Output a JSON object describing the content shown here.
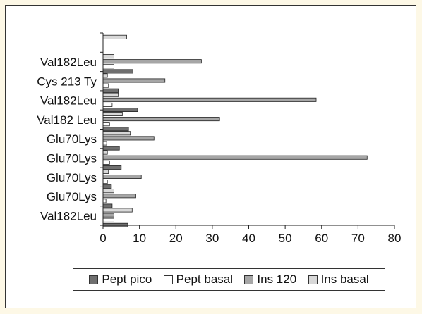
{
  "chart_data": {
    "type": "bar",
    "orientation": "horizontal",
    "categories": [
      "",
      "Val182Leu",
      "Cys 213 Ty",
      "Val182Leu",
      "Val182 Leu",
      "Glu70Lys",
      "Glu70Lys",
      "Glu70Lys",
      "Glu70Lys",
      "Val182Leu"
    ],
    "series": [
      {
        "name": "Ins basal",
        "color": "#d8d8d8",
        "values": [
          6.5,
          3.0,
          1.2,
          4.2,
          5.3,
          7.5,
          1.2,
          1.5,
          3.0,
          8.0
        ]
      },
      {
        "name": "Ins 120",
        "color": "#a6a6a6",
        "values": [
          null,
          27.0,
          17.0,
          58.5,
          32.0,
          14.0,
          72.5,
          10.5,
          9.0,
          3.0
        ]
      },
      {
        "name": "Pept basal",
        "color": "#ffffff",
        "values": [
          null,
          3.0,
          1.5,
          2.5,
          1.8,
          1.0,
          1.8,
          1.2,
          0.8,
          3.0
        ]
      },
      {
        "name": "Pept pico",
        "color": "#6f6f6f",
        "values": [
          null,
          8.2,
          4.2,
          9.5,
          7.0,
          4.5,
          5.0,
          2.3,
          2.5,
          6.8
        ]
      }
    ],
    "xlim": [
      0,
      80
    ],
    "xticks": [
      0,
      10,
      20,
      30,
      40,
      50,
      60,
      70,
      80
    ],
    "legend": {
      "position": "bottom",
      "order": [
        "Pept pico",
        "Pept basal",
        "Ins 120",
        "Ins basal"
      ]
    },
    "grid": false
  }
}
